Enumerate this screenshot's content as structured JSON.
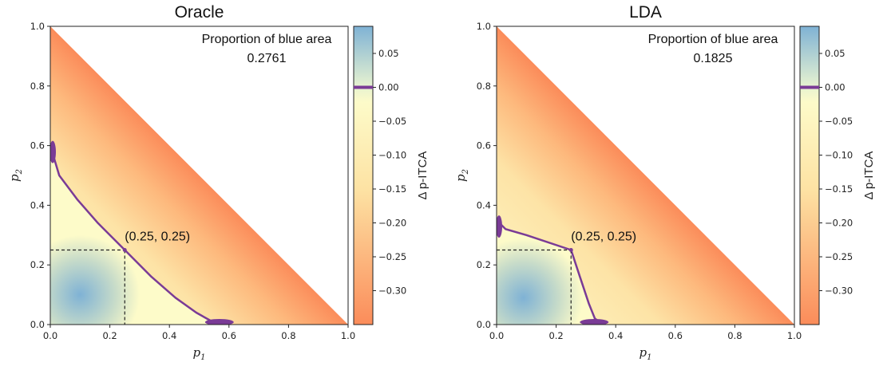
{
  "colors": {
    "blue": "#7fb2d5",
    "neutral": "#fdfbc9",
    "orange": "#fb8c5a",
    "boundary": "#7a3b96"
  },
  "chart_data": [
    {
      "type": "heatmap",
      "title": "Oracle",
      "xlabel": "p",
      "xlabel_sub": "1",
      "ylabel": "p",
      "ylabel_sub": "2",
      "xlim": [
        0,
        1
      ],
      "ylim": [
        0,
        1
      ],
      "xticks": [
        "0.0",
        "0.2",
        "0.4",
        "0.6",
        "0.8",
        "1.0"
      ],
      "yticks": [
        "0.0",
        "0.2",
        "0.4",
        "0.6",
        "0.8",
        "1.0"
      ],
      "annotation_title": "Proportion of blue area",
      "annotation_value": "0.2761",
      "point_label": "(0.25, 0.25)",
      "point": [
        0.25,
        0.25
      ],
      "zero_contour": [
        [
          0.0,
          0.6
        ],
        [
          0.03,
          0.5
        ],
        [
          0.09,
          0.42
        ],
        [
          0.16,
          0.34
        ],
        [
          0.25,
          0.25
        ],
        [
          0.34,
          0.16
        ],
        [
          0.42,
          0.09
        ],
        [
          0.49,
          0.04
        ],
        [
          0.54,
          0.012
        ],
        [
          0.6,
          0.0
        ]
      ],
      "blue_center": [
        0.1,
        0.1
      ],
      "colorbar_label": "Δ p-ITCA",
      "colorbar_range": [
        -0.35,
        0.09
      ],
      "colorbar_ticks": [
        "0.05",
        "0.00",
        "−0.05",
        "−0.10",
        "−0.15",
        "−0.20",
        "−0.25",
        "−0.30"
      ]
    },
    {
      "type": "heatmap",
      "title": "LDA",
      "xlabel": "p",
      "xlabel_sub": "1",
      "ylabel": "p",
      "ylabel_sub": "2",
      "xlim": [
        0,
        1
      ],
      "ylim": [
        0,
        1
      ],
      "xticks": [
        "0.0",
        "0.2",
        "0.4",
        "0.6",
        "0.8",
        "1.0"
      ],
      "yticks": [
        "0.0",
        "0.2",
        "0.4",
        "0.6",
        "0.8",
        "1.0"
      ],
      "annotation_title": "Proportion of blue area",
      "annotation_value": "0.1825",
      "point_label": "(0.25, 0.25)",
      "point": [
        0.25,
        0.25
      ],
      "zero_contour": [
        [
          0.0,
          0.35
        ],
        [
          0.03,
          0.32
        ],
        [
          0.1,
          0.3
        ],
        [
          0.25,
          0.25
        ],
        [
          0.28,
          0.16
        ],
        [
          0.31,
          0.07
        ],
        [
          0.33,
          0.02
        ],
        [
          0.36,
          0.0
        ]
      ],
      "blue_center": [
        0.09,
        0.09
      ],
      "colorbar_label": "Δ p-ITCA",
      "colorbar_range": [
        -0.35,
        0.09
      ],
      "colorbar_ticks": [
        "0.05",
        "0.00",
        "−0.05",
        "−0.10",
        "−0.15",
        "−0.20",
        "−0.25",
        "−0.30"
      ]
    }
  ]
}
